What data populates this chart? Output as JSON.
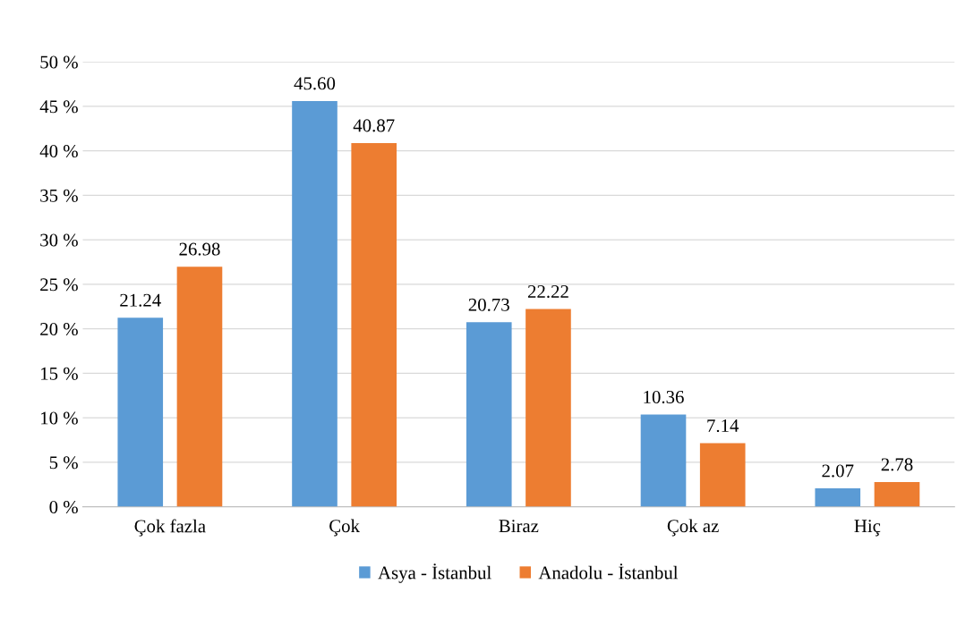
{
  "chart_data": {
    "type": "bar",
    "categories": [
      "Çok fazla",
      "Çok",
      "Biraz",
      "Çok az",
      "Hiç"
    ],
    "series": [
      {
        "name": "Asya - İstanbul",
        "color": "#5b9bd5",
        "values": [
          21.24,
          45.6,
          20.73,
          10.36,
          2.07
        ],
        "value_labels": [
          "21.24",
          "45.60",
          "20.73",
          "10.36",
          "2.07"
        ]
      },
      {
        "name": "Anadolu - İstanbul",
        "color": "#ed7d31",
        "values": [
          26.98,
          40.87,
          22.22,
          7.14,
          2.78
        ],
        "value_labels": [
          "26.98",
          "40.87",
          "22.22",
          "7.14",
          "2.78"
        ]
      }
    ],
    "ylim": [
      0,
      50
    ],
    "yticks": [
      {
        "value": 0,
        "label": "0 %"
      },
      {
        "value": 5,
        "label": "5 %"
      },
      {
        "value": 10,
        "label": "10 %"
      },
      {
        "value": 15,
        "label": "15 %"
      },
      {
        "value": 20,
        "label": "20 %"
      },
      {
        "value": 25,
        "label": "25 %"
      },
      {
        "value": 30,
        "label": "30 %"
      },
      {
        "value": 35,
        "label": "35 %"
      },
      {
        "value": 40,
        "label": "40 %"
      },
      {
        "value": 45,
        "label": "45 %"
      },
      {
        "value": 50,
        "label": "50 %"
      }
    ],
    "grid": "y",
    "legend": "bottom"
  }
}
